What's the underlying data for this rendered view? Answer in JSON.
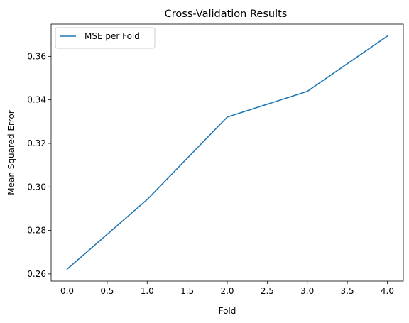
{
  "chart_data": {
    "type": "line",
    "title": "Cross-Validation Results",
    "xlabel": "Fold",
    "ylabel": "Mean Squared Error",
    "xlim": [
      -0.2,
      4.2
    ],
    "ylim": [
      0.2567,
      0.3748
    ],
    "xticks": [
      0.0,
      0.5,
      1.0,
      1.5,
      2.0,
      2.5,
      3.0,
      3.5,
      4.0
    ],
    "xtick_labels": [
      "0.0",
      "0.5",
      "1.0",
      "1.5",
      "2.0",
      "2.5",
      "3.0",
      "3.5",
      "4.0"
    ],
    "yticks": [
      0.26,
      0.28,
      0.3,
      0.32,
      0.34,
      0.36
    ],
    "ytick_labels": [
      "0.26",
      "0.28",
      "0.30",
      "0.32",
      "0.34",
      "0.36"
    ],
    "grid": false,
    "legend_position": "upper-left",
    "series": [
      {
        "name": "MSE per Fold",
        "color": "#1f77b4",
        "x": [
          0,
          1,
          2,
          3,
          4
        ],
        "y": [
          0.2622,
          0.2942,
          0.3321,
          0.3439,
          0.3693
        ]
      }
    ]
  }
}
